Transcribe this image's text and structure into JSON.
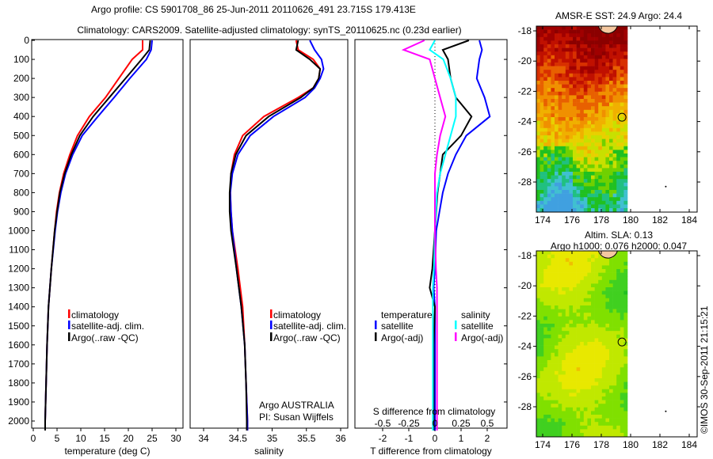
{
  "title_line1": "Argo profile: CS 5901708_86 25-Jun-2011 20110626_491 23.715S 179.413E",
  "title_line2": "Climatology: CARS2009. Satellite-adjusted climatology: synTS_20110625.nc (0.23d earlier)",
  "credit": "©IMOS 30-Sep-2011 21:15:21",
  "chart_data": [
    {
      "type": "line",
      "name": "temperature",
      "xlabel": "temperature (deg C)",
      "xlim": [
        -0.3,
        31.5
      ],
      "ylim": [
        2050,
        0
      ],
      "xticks": [
        "0",
        "5",
        "10",
        "15",
        "20",
        "25",
        "30"
      ],
      "yticks": [
        "0",
        "100",
        "200",
        "300",
        "400",
        "500",
        "600",
        "700",
        "800",
        "900",
        "1000",
        "1100",
        "1200",
        "1300",
        "1400",
        "1500",
        "1600",
        "1700",
        "1800",
        "1900",
        "2000"
      ],
      "depth": [
        0,
        50,
        100,
        200,
        300,
        400,
        500,
        600,
        700,
        800,
        900,
        1000,
        1200,
        1400,
        1600,
        1800,
        2000,
        2050
      ],
      "series": [
        {
          "name": "climatology",
          "color": "#ff0000",
          "values": [
            23,
            23,
            20.8,
            18,
            15.2,
            11.8,
            9.3,
            7.7,
            6.4,
            5.5,
            4.9,
            4.5,
            3.8,
            3.2,
            2.9,
            2.7,
            2.5,
            2.5
          ]
        },
        {
          "name": "satellite-adj. clim.",
          "color": "#0000ff",
          "values": [
            25,
            24.8,
            23.8,
            20.3,
            17,
            13.6,
            10.3,
            8.3,
            6.8,
            5.8,
            5.1,
            4.6,
            3.8,
            3.2,
            2.9,
            2.7,
            2.5,
            2.5
          ]
        },
        {
          "name": "Argo(..raw -QC)",
          "color": "#000000",
          "values": [
            24.6,
            24.4,
            22.8,
            19.4,
            16,
            12.6,
            9.8,
            8,
            6.6,
            5.6,
            5,
            4.5,
            3.8,
            3.2,
            2.9,
            2.7,
            2.5,
            2.5
          ]
        }
      ],
      "legend": [
        "climatology",
        "satellite-adj. clim.",
        "Argo(..raw -QC)"
      ]
    },
    {
      "type": "line",
      "name": "salinity",
      "xlabel": "salinity",
      "xlim": [
        33.8,
        36.2
      ],
      "xticks": [
        "34",
        "34.5",
        "35",
        "35.5",
        "36"
      ],
      "depth": [
        0,
        50,
        100,
        150,
        200,
        250,
        300,
        400,
        500,
        600,
        700,
        800,
        900,
        1000,
        1200,
        1400,
        1600,
        1800,
        2000,
        2050
      ],
      "series": [
        {
          "name": "climatology",
          "color": "#ff0000",
          "values": [
            35.35,
            35.38,
            35.6,
            35.7,
            35.68,
            35.6,
            35.38,
            34.88,
            34.57,
            34.45,
            34.4,
            34.39,
            34.4,
            34.42,
            34.5,
            34.57,
            34.6,
            34.62,
            34.64,
            34.64
          ]
        },
        {
          "name": "satellite-adj. clim.",
          "color": "#0000ff",
          "values": [
            35.55,
            35.62,
            35.72,
            35.75,
            35.7,
            35.62,
            35.48,
            35.02,
            34.68,
            34.5,
            34.42,
            34.39,
            34.4,
            34.42,
            34.48,
            34.55,
            34.6,
            34.62,
            34.64,
            34.64
          ]
        },
        {
          "name": "Argo(..raw -QC)",
          "color": "#000000",
          "values": [
            35.38,
            35.35,
            35.55,
            35.7,
            35.68,
            35.6,
            35.42,
            34.95,
            34.62,
            34.47,
            34.4,
            34.38,
            34.38,
            34.4,
            34.48,
            34.55,
            34.6,
            34.62,
            34.63,
            34.63
          ]
        }
      ],
      "annotation": [
        "Argo AUSTRALIA",
        "PI: Susan Wijffels"
      ]
    },
    {
      "type": "line",
      "name": "difference",
      "xlabel": "T difference from climatology",
      "xlabel2": "S difference from climatology",
      "xlim": [
        -3.06,
        2.76
      ],
      "xticks": [
        "-2",
        "-1",
        "0",
        "1",
        "2"
      ],
      "xticks2": [
        "-0.5",
        "-0.25",
        "0",
        "0.25",
        "0.5"
      ],
      "depth": [
        0,
        50,
        100,
        200,
        300,
        400,
        500,
        600,
        700,
        800,
        1000,
        1200,
        1300,
        1400,
        1600,
        2000,
        2050
      ],
      "series": [
        {
          "name": "temperature satellite",
          "color": "#0000ff",
          "values": [
            1.7,
            1.8,
            1.7,
            1.6,
            1.9,
            2.1,
            1.2,
            0.8,
            0.5,
            0.3,
            0.05,
            0,
            -0.05,
            0,
            0,
            0,
            0
          ]
        },
        {
          "name": "temperature Argo(-adj)",
          "color": "#000000",
          "values": [
            1.3,
            0.3,
            0.5,
            0.6,
            0.8,
            1.4,
            1.0,
            0.3,
            0.2,
            0.1,
            0,
            -0.1,
            -0.2,
            0,
            -0.05,
            -0.05,
            -0.05
          ]
        },
        {
          "name": "salinity satellite",
          "color": "#00ffff",
          "values": [
            0,
            -0.05,
            0.08,
            0.15,
            0.2,
            0.2,
            0.15,
            0.1,
            0.05,
            0.02,
            0,
            -0.01,
            -0.02,
            -0.02,
            -0.02,
            -0.02,
            -0.02
          ]
        },
        {
          "name": "salinity Argo(-adj)",
          "color": "#ff00ff",
          "values": [
            -0.1,
            -0.3,
            -0.05,
            0,
            0.05,
            0.1,
            0.05,
            0.02,
            0,
            0,
            0,
            0.01,
            0.02,
            0.02,
            0.02,
            0.02,
            0.02
          ]
        }
      ],
      "legend_headers": [
        "temperature",
        "salinity"
      ],
      "legend": [
        "satellite",
        "Argo(-adj)",
        "satellite",
        "Argo(-adj)"
      ]
    },
    {
      "type": "heatmap",
      "name": "sst-map",
      "title": "AMSR-E SST: 24.9 Argo: 24.4",
      "xticks": [
        "174",
        "176",
        "178",
        "180",
        "182",
        "184"
      ],
      "yticks": [
        "-18",
        "-20",
        "-22",
        "-24",
        "-26",
        "-28"
      ],
      "xlim": [
        173.6,
        185.2
      ],
      "ylim": [
        -29.6,
        -17.7
      ],
      "argo_position": [
        179.413,
        -23.715
      ]
    },
    {
      "type": "heatmap",
      "name": "sla-map",
      "title_line1": "Altim. SLA: 0.13",
      "title_line2": "Argo h1000: 0.076 h2000: 0.047",
      "xticks": [
        "174",
        "176",
        "178",
        "180",
        "182",
        "184"
      ],
      "yticks": [
        "-18",
        "-20",
        "-22",
        "-24",
        "-26",
        "-28"
      ],
      "xlim": [
        173.6,
        185.2
      ],
      "ylim": [
        -29.6,
        -17.7
      ],
      "argo_position": [
        179.413,
        -23.715
      ]
    }
  ]
}
